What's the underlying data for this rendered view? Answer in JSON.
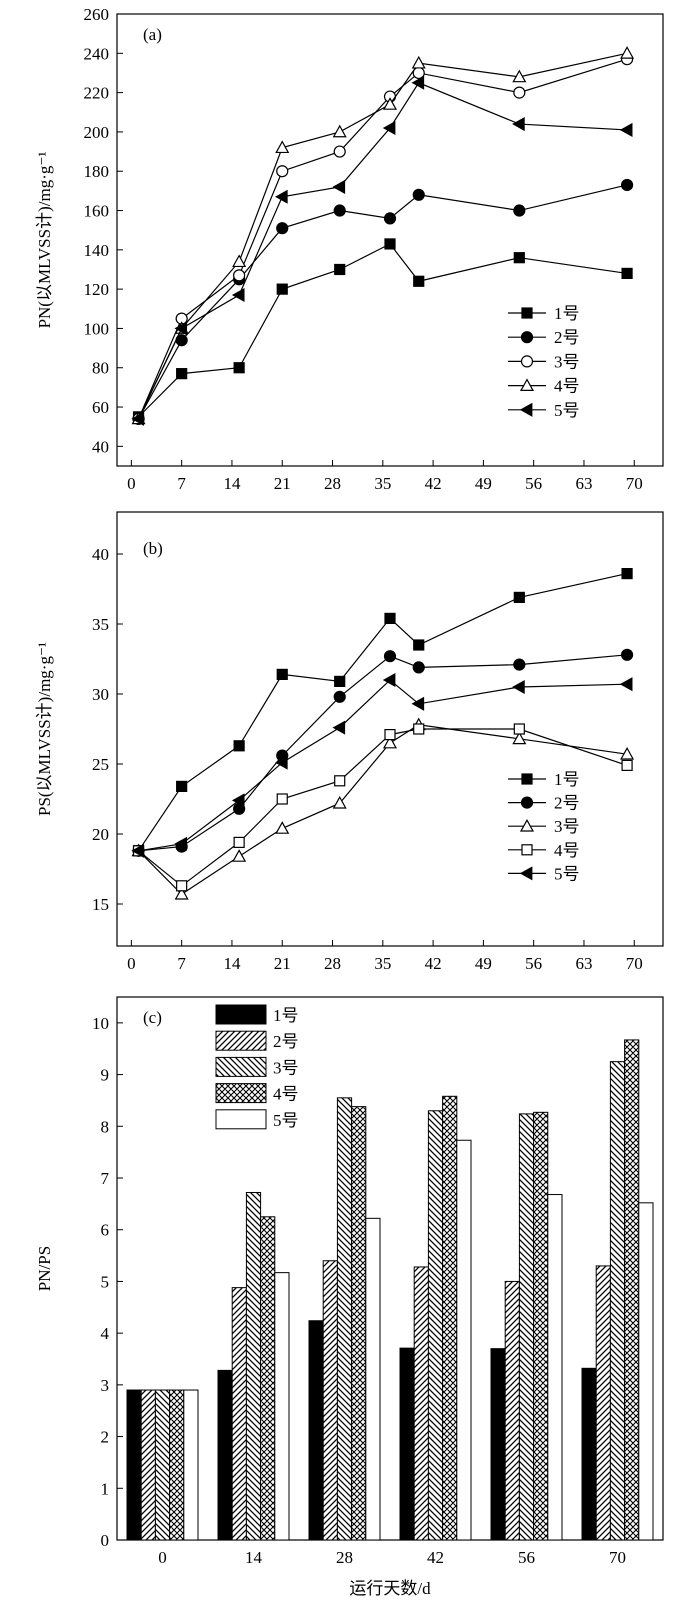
{
  "chart_data": [
    {
      "type": "line",
      "panel_label": "(a)",
      "ylabel": "PN(以MLVSS计)/mg·g⁻¹",
      "xlabel": "",
      "xlim": [
        -2,
        74
      ],
      "ylim": [
        30,
        260
      ],
      "x_ticks": [
        0,
        7,
        14,
        21,
        28,
        35,
        42,
        49,
        56,
        63,
        70
      ],
      "y_ticks": [
        40,
        60,
        80,
        100,
        120,
        140,
        160,
        180,
        200,
        220,
        240,
        260
      ],
      "legend_position": "lower-right",
      "series": [
        {
          "name": "1号",
          "marker": "square-filled",
          "x": [
            1,
            7,
            15,
            21,
            29,
            36,
            40,
            54,
            69
          ],
          "y": [
            55,
            77,
            80,
            120,
            130,
            143,
            124,
            136,
            128
          ]
        },
        {
          "name": "2号",
          "marker": "circle-filled",
          "x": [
            1,
            7,
            15,
            21,
            29,
            36,
            40,
            54,
            69
          ],
          "y": [
            54,
            94,
            125,
            151,
            160,
            156,
            168,
            160,
            173
          ]
        },
        {
          "name": "3号",
          "marker": "circle-open",
          "x": [
            1,
            7,
            15,
            21,
            29,
            36,
            40,
            54,
            69
          ],
          "y": [
            54,
            105,
            127,
            180,
            190,
            218,
            230,
            220,
            237
          ]
        },
        {
          "name": "4号",
          "marker": "triangle-open",
          "x": [
            1,
            7,
            15,
            21,
            29,
            36,
            40,
            54,
            69
          ],
          "y": [
            54,
            100,
            134,
            192,
            200,
            214,
            235,
            228,
            240
          ]
        },
        {
          "name": "5号",
          "marker": "triangle-left-filled",
          "x": [
            1,
            7,
            15,
            21,
            29,
            36,
            40,
            54,
            69
          ],
          "y": [
            54,
            100,
            117,
            167,
            172,
            202,
            225,
            204,
            201
          ]
        }
      ]
    },
    {
      "type": "line",
      "panel_label": "(b)",
      "ylabel": "PS(以MLVSS计)/mg·g⁻¹",
      "xlabel": "",
      "xlim": [
        -2,
        74
      ],
      "ylim": [
        12,
        43
      ],
      "x_ticks": [
        0,
        7,
        14,
        21,
        28,
        35,
        42,
        49,
        56,
        63,
        70
      ],
      "y_ticks": [
        15,
        20,
        25,
        30,
        35,
        40
      ],
      "legend_position": "lower-right",
      "series": [
        {
          "name": "1号",
          "marker": "square-filled",
          "x": [
            1,
            7,
            15,
            21,
            29,
            36,
            40,
            54,
            69
          ],
          "y": [
            18.8,
            23.4,
            26.3,
            31.4,
            30.9,
            35.4,
            33.5,
            36.9,
            38.6
          ]
        },
        {
          "name": "2号",
          "marker": "circle-filled",
          "x": [
            1,
            7,
            15,
            21,
            29,
            36,
            40,
            54,
            69
          ],
          "y": [
            18.8,
            19.1,
            21.8,
            25.6,
            29.8,
            32.7,
            31.9,
            32.1,
            32.8
          ]
        },
        {
          "name": "3号",
          "marker": "triangle-open",
          "x": [
            1,
            7,
            15,
            21,
            29,
            36,
            40,
            54,
            69
          ],
          "y": [
            18.8,
            15.7,
            18.4,
            20.4,
            22.2,
            26.5,
            27.8,
            26.8,
            25.7
          ]
        },
        {
          "name": "4号",
          "marker": "square-open",
          "x": [
            1,
            7,
            15,
            21,
            29,
            36,
            40,
            54,
            69
          ],
          "y": [
            18.8,
            16.3,
            19.4,
            22.5,
            23.8,
            27.1,
            27.5,
            27.5,
            24.9
          ]
        },
        {
          "name": "5号",
          "marker": "triangle-left-filled",
          "x": [
            1,
            7,
            15,
            21,
            29,
            36,
            40,
            54,
            69
          ],
          "y": [
            18.8,
            19.3,
            22.4,
            25.1,
            27.6,
            31.0,
            29.3,
            30.5,
            30.7
          ]
        }
      ]
    },
    {
      "type": "bar",
      "panel_label": "(c)",
      "ylabel": "PN/PS",
      "xlabel": "运行天数/d",
      "ylim": [
        0,
        10.5
      ],
      "y_ticks": [
        0,
        1,
        2,
        3,
        4,
        5,
        6,
        7,
        8,
        9,
        10
      ],
      "categories": [
        "0",
        "14",
        "28",
        "42",
        "56",
        "70"
      ],
      "legend_position": "top-left",
      "series": [
        {
          "name": "1号",
          "pattern": "solid-black",
          "values": [
            2.9,
            3.28,
            4.24,
            3.71,
            3.7,
            3.32
          ]
        },
        {
          "name": "2号",
          "pattern": "diagonal-up",
          "values": [
            2.9,
            4.88,
            5.4,
            5.28,
            5.0,
            5.3
          ]
        },
        {
          "name": "3号",
          "pattern": "diagonal-down",
          "values": [
            2.9,
            6.72,
            8.55,
            8.3,
            8.24,
            9.25
          ]
        },
        {
          "name": "4号",
          "pattern": "crosshatch",
          "values": [
            2.9,
            6.25,
            8.38,
            8.58,
            8.27,
            9.67
          ]
        },
        {
          "name": "5号",
          "pattern": "white",
          "values": [
            2.9,
            5.17,
            6.22,
            7.73,
            6.68,
            6.52
          ]
        }
      ]
    }
  ]
}
